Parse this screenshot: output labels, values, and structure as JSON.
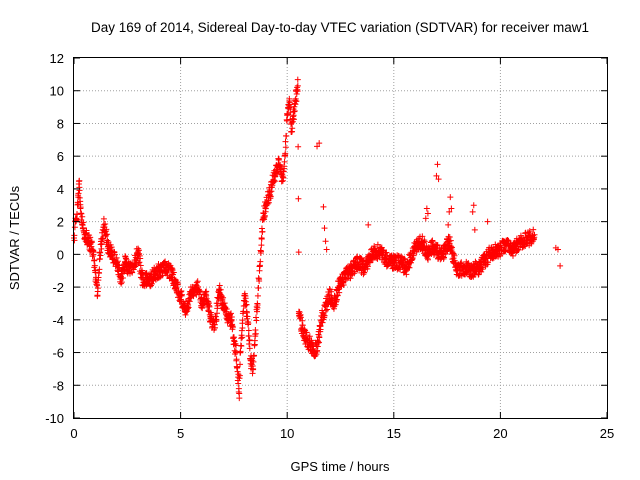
{
  "chart_data": {
    "type": "scatter",
    "title": "Day 169 of 2014, Sidereal Day-to-day VTEC variation (SDTVAR) for receiver maw1",
    "xlabel": "GPS time / hours",
    "ylabel": "SDTVAR / TECUs",
    "xlim": [
      0,
      25
    ],
    "ylim": [
      -10,
      12
    ],
    "xticks": [
      "0",
      "5",
      "10",
      "15",
      "20",
      "25"
    ],
    "yticks": [
      "-10",
      "-8",
      "-6",
      "-4",
      "-2",
      "0",
      "2",
      "4",
      "6",
      "8",
      "10",
      "12"
    ],
    "grid": true,
    "marker": "+",
    "series": [
      {
        "name": "SDTVAR",
        "color": "#ff0000",
        "anchors": [
          [
            0.0,
            1.0
          ],
          [
            0.1,
            2.2
          ],
          [
            0.2,
            3.5
          ],
          [
            0.25,
            4.5
          ],
          [
            0.3,
            2.8
          ],
          [
            0.4,
            1.8
          ],
          [
            0.5,
            1.2
          ],
          [
            0.7,
            0.8
          ],
          [
            0.9,
            0.2
          ],
          [
            1.0,
            -1.0
          ],
          [
            1.1,
            -2.5
          ],
          [
            1.2,
            -0.3
          ],
          [
            1.3,
            0.8
          ],
          [
            1.4,
            1.8
          ],
          [
            1.5,
            1.2
          ],
          [
            1.6,
            0.5
          ],
          [
            1.8,
            0.0
          ],
          [
            2.0,
            -0.5
          ],
          [
            2.2,
            -1.5
          ],
          [
            2.4,
            -0.5
          ],
          [
            2.6,
            -1.0
          ],
          [
            2.8,
            -0.8
          ],
          [
            3.0,
            0.2
          ],
          [
            3.2,
            -1.5
          ],
          [
            3.5,
            -1.6
          ],
          [
            3.8,
            -1.2
          ],
          [
            4.0,
            -1.0
          ],
          [
            4.3,
            -0.8
          ],
          [
            4.6,
            -1.2
          ],
          [
            4.8,
            -2.0
          ],
          [
            5.0,
            -2.5
          ],
          [
            5.2,
            -3.5
          ],
          [
            5.5,
            -2.3
          ],
          [
            5.8,
            -2.0
          ],
          [
            6.0,
            -3.0
          ],
          [
            6.2,
            -2.5
          ],
          [
            6.4,
            -3.8
          ],
          [
            6.6,
            -4.5
          ],
          [
            6.8,
            -2.2
          ],
          [
            7.0,
            -3.0
          ],
          [
            7.2,
            -3.8
          ],
          [
            7.4,
            -4.0
          ],
          [
            7.5,
            -5.5
          ],
          [
            7.6,
            -6.0
          ],
          [
            7.7,
            -7.5
          ],
          [
            7.75,
            -8.5
          ],
          [
            7.8,
            -6.0
          ],
          [
            7.9,
            -4.5
          ],
          [
            8.0,
            -2.5
          ],
          [
            8.1,
            -3.5
          ],
          [
            8.2,
            -5.0
          ],
          [
            8.3,
            -6.5
          ],
          [
            8.4,
            -7.0
          ],
          [
            8.5,
            -5.0
          ],
          [
            8.6,
            -3.0
          ],
          [
            8.7,
            -1.0
          ],
          [
            8.8,
            1.0
          ],
          [
            8.9,
            2.5
          ],
          [
            9.0,
            3.0
          ],
          [
            9.2,
            3.8
          ],
          [
            9.4,
            4.8
          ],
          [
            9.6,
            5.5
          ],
          [
            9.8,
            4.5
          ],
          [
            9.9,
            6.0
          ],
          [
            10.0,
            8.5
          ],
          [
            10.1,
            9.5
          ],
          [
            10.2,
            7.5
          ],
          [
            10.3,
            8.5
          ],
          [
            10.4,
            9.5
          ],
          [
            10.5,
            10.3
          ],
          [
            10.55,
            -3.5
          ],
          [
            10.7,
            -4.5
          ],
          [
            10.9,
            -5.2
          ],
          [
            11.1,
            -5.5
          ],
          [
            11.3,
            -6.0
          ],
          [
            11.5,
            -5.0
          ],
          [
            11.6,
            -4.0
          ],
          [
            11.8,
            -3.2
          ],
          [
            12.0,
            -2.5
          ],
          [
            12.2,
            -3.0
          ],
          [
            12.4,
            -2.0
          ],
          [
            12.6,
            -1.5
          ],
          [
            12.8,
            -1.2
          ],
          [
            13.0,
            -1.0
          ],
          [
            13.3,
            -0.5
          ],
          [
            13.6,
            -0.8
          ],
          [
            14.0,
            0.0
          ],
          [
            14.3,
            0.2
          ],
          [
            14.6,
            -0.3
          ],
          [
            15.0,
            -0.5
          ],
          [
            15.3,
            -0.5
          ],
          [
            15.6,
            -0.8
          ],
          [
            16.0,
            0.5
          ],
          [
            16.3,
            0.8
          ],
          [
            16.6,
            0.0
          ],
          [
            16.8,
            0.5
          ],
          [
            17.0,
            0.2
          ],
          [
            17.3,
            0.0
          ],
          [
            17.6,
            0.8
          ],
          [
            18.0,
            -1.0
          ],
          [
            18.3,
            -0.8
          ],
          [
            18.6,
            -1.0
          ],
          [
            19.0,
            -0.8
          ],
          [
            19.5,
            0.0
          ],
          [
            19.8,
            0.2
          ],
          [
            20.2,
            0.5
          ],
          [
            20.6,
            0.3
          ],
          [
            21.0,
            0.8
          ],
          [
            21.4,
            1.0
          ],
          [
            21.6,
            1.2
          ]
        ],
        "outliers": [
          [
            11.4,
            6.6
          ],
          [
            11.5,
            6.8
          ],
          [
            11.7,
            2.9
          ],
          [
            11.75,
            1.6
          ],
          [
            11.8,
            0.8
          ],
          [
            11.85,
            0.3
          ],
          [
            13.8,
            1.8
          ],
          [
            16.5,
            2.2
          ],
          [
            16.55,
            2.8
          ],
          [
            16.6,
            2.5
          ],
          [
            17.0,
            4.8
          ],
          [
            17.05,
            5.5
          ],
          [
            17.1,
            4.6
          ],
          [
            17.55,
            1.8
          ],
          [
            17.6,
            2.6
          ],
          [
            17.65,
            3.5
          ],
          [
            17.7,
            2.8
          ],
          [
            18.7,
            2.6
          ],
          [
            18.75,
            3.0
          ],
          [
            18.8,
            1.5
          ],
          [
            19.4,
            2.0
          ],
          [
            22.6,
            0.4
          ],
          [
            22.7,
            0.3
          ],
          [
            22.8,
            -0.7
          ]
        ]
      }
    ]
  }
}
